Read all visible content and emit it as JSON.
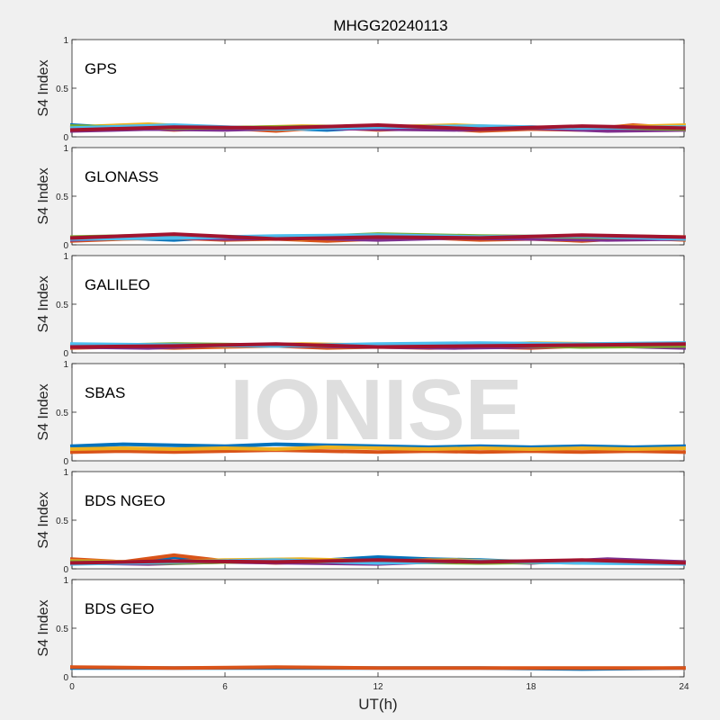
{
  "chart_data": {
    "type": "scatter",
    "title": "MHGG20240113",
    "xlabel": "UT(h)",
    "ylabel": "S4 Index",
    "xlim": [
      0,
      24
    ],
    "ylim": [
      0,
      1
    ],
    "xticks": [
      "0",
      "6",
      "12",
      "18",
      "24"
    ],
    "yticks": [
      "0",
      "0.5",
      "1"
    ],
    "watermark": "IONISE",
    "palette": [
      "#0072bd",
      "#d95319",
      "#edb120",
      "#7e2f8e",
      "#77ac30",
      "#4dbeee",
      "#a2142f"
    ],
    "panels": [
      {
        "label": "GPS",
        "series": [
          {
            "x": [
              0,
              2,
              4,
              6,
              8,
              10,
              12,
              14,
              16,
              18,
              20,
              22,
              24
            ],
            "y": [
              0.12,
              0.09,
              0.1,
              0.08,
              0.09,
              0.07,
              0.1,
              0.08,
              0.09,
              0.1,
              0.08,
              0.09,
              0.11
            ]
          },
          {
            "x": [
              0,
              2,
              4,
              6,
              8,
              10,
              12,
              14,
              16,
              18,
              20,
              22,
              24
            ],
            "y": [
              0.08,
              0.1,
              0.07,
              0.09,
              0.06,
              0.1,
              0.07,
              0.09,
              0.06,
              0.08,
              0.07,
              0.12,
              0.09
            ]
          },
          {
            "x": [
              0,
              3,
              6,
              9,
              12,
              15,
              18,
              21,
              24
            ],
            "y": [
              0.1,
              0.13,
              0.09,
              0.11,
              0.1,
              0.12,
              0.09,
              0.1,
              0.12
            ]
          },
          {
            "x": [
              0,
              3,
              6,
              9,
              12,
              15,
              18,
              21,
              24
            ],
            "y": [
              0.06,
              0.08,
              0.07,
              0.09,
              0.08,
              0.07,
              0.09,
              0.06,
              0.07
            ]
          },
          {
            "x": [
              0,
              4,
              8,
              12,
              16,
              20,
              24
            ],
            "y": [
              0.11,
              0.09,
              0.1,
              0.11,
              0.09,
              0.1,
              0.08
            ]
          },
          {
            "x": [
              0,
              4,
              8,
              12,
              16,
              20,
              24
            ],
            "y": [
              0.09,
              0.12,
              0.08,
              0.1,
              0.11,
              0.09,
              0.1
            ]
          },
          {
            "x": [
              0,
              4,
              8,
              12,
              16,
              20,
              24
            ],
            "y": [
              0.07,
              0.1,
              0.09,
              0.12,
              0.08,
              0.11,
              0.09
            ]
          }
        ]
      },
      {
        "label": "GLONASS",
        "series": [
          {
            "x": [
              0,
              2,
              4,
              6,
              8,
              10,
              12,
              14,
              16,
              18,
              20,
              22,
              24
            ],
            "y": [
              0.06,
              0.07,
              0.05,
              0.08,
              0.06,
              0.07,
              0.09,
              0.08,
              0.06,
              0.07,
              0.08,
              0.06,
              0.07
            ]
          },
          {
            "x": [
              0,
              2,
              4,
              6,
              8,
              10,
              12,
              14,
              16,
              18,
              20,
              22,
              24
            ],
            "y": [
              0.04,
              0.06,
              0.07,
              0.05,
              0.06,
              0.04,
              0.06,
              0.07,
              0.05,
              0.06,
              0.04,
              0.07,
              0.05
            ]
          },
          {
            "x": [
              0,
              3,
              6,
              9,
              12,
              15,
              18,
              21,
              24
            ],
            "y": [
              0.07,
              0.09,
              0.08,
              0.06,
              0.1,
              0.08,
              0.07,
              0.09,
              0.08
            ]
          },
          {
            "x": [
              0,
              3,
              6,
              9,
              12,
              15,
              18,
              21,
              24
            ],
            "y": [
              0.05,
              0.08,
              0.06,
              0.07,
              0.05,
              0.07,
              0.06,
              0.05,
              0.06
            ]
          },
          {
            "x": [
              0,
              4,
              8,
              12,
              16,
              20,
              24
            ],
            "y": [
              0.08,
              0.1,
              0.07,
              0.11,
              0.09,
              0.08,
              0.07
            ]
          },
          {
            "x": [
              0,
              4,
              8,
              12,
              16,
              20,
              24
            ],
            "y": [
              0.06,
              0.07,
              0.09,
              0.1,
              0.08,
              0.09,
              0.06
            ]
          },
          {
            "x": [
              0,
              4,
              8,
              12,
              16,
              20,
              24
            ],
            "y": [
              0.07,
              0.11,
              0.06,
              0.08,
              0.07,
              0.1,
              0.08
            ]
          }
        ]
      },
      {
        "label": "GALILEO",
        "series": [
          {
            "x": [
              0,
              2,
              4,
              6,
              8,
              10,
              12,
              14,
              16,
              18,
              20,
              22,
              24
            ],
            "y": [
              0.08,
              0.07,
              0.06,
              0.08,
              0.07,
              0.06,
              0.08,
              0.07,
              0.06,
              0.07,
              0.08,
              0.07,
              0.06
            ]
          },
          {
            "x": [
              0,
              2,
              4,
              6,
              8,
              10,
              12,
              14,
              16,
              18,
              20,
              22,
              24
            ],
            "y": [
              0.05,
              0.06,
              0.05,
              0.06,
              0.07,
              0.05,
              0.06,
              0.05,
              0.06,
              0.05,
              0.07,
              0.09,
              0.08
            ]
          },
          {
            "x": [
              0,
              3,
              6,
              9,
              12,
              15,
              18,
              21,
              24
            ],
            "y": [
              0.07,
              0.08,
              0.07,
              0.09,
              0.08,
              0.07,
              0.1,
              0.09,
              0.08
            ]
          },
          {
            "x": [
              0,
              3,
              6,
              9,
              12,
              15,
              18,
              21,
              24
            ],
            "y": [
              0.06,
              0.05,
              0.08,
              0.07,
              0.06,
              0.05,
              0.06,
              0.07,
              0.05
            ]
          },
          {
            "x": [
              0,
              4,
              8,
              12,
              16,
              20,
              24
            ],
            "y": [
              0.07,
              0.09,
              0.08,
              0.07,
              0.08,
              0.06,
              0.07
            ]
          },
          {
            "x": [
              0,
              4,
              8,
              12,
              16,
              20,
              24
            ],
            "y": [
              0.09,
              0.08,
              0.07,
              0.09,
              0.1,
              0.09,
              0.1
            ]
          },
          {
            "x": [
              0,
              4,
              8,
              12,
              16,
              20,
              24
            ],
            "y": [
              0.06,
              0.07,
              0.09,
              0.06,
              0.07,
              0.08,
              0.09
            ]
          }
        ]
      },
      {
        "label": "SBAS",
        "series": [
          {
            "x": [
              0,
              2,
              4,
              6,
              8,
              10,
              12,
              14,
              16,
              18,
              20,
              22,
              24
            ],
            "y": [
              0.15,
              0.17,
              0.16,
              0.15,
              0.17,
              0.16,
              0.15,
              0.14,
              0.15,
              0.14,
              0.15,
              0.14,
              0.15
            ]
          },
          {
            "x": [
              0,
              2,
              4,
              6,
              8,
              10,
              12,
              14,
              16,
              18,
              20,
              22,
              24
            ],
            "y": [
              0.09,
              0.1,
              0.09,
              0.1,
              0.11,
              0.1,
              0.09,
              0.1,
              0.09,
              0.1,
              0.09,
              0.1,
              0.09
            ]
          },
          {
            "x": [
              0,
              2,
              4,
              6,
              8,
              10,
              12,
              14,
              16,
              18,
              20,
              22,
              24
            ],
            "y": [
              0.12,
              0.13,
              0.12,
              0.13,
              0.12,
              0.14,
              0.13,
              0.12,
              0.13,
              0.12,
              0.13,
              0.12,
              0.13
            ]
          }
        ]
      },
      {
        "label": "BDS NGEO",
        "series": [
          {
            "x": [
              0,
              2,
              4,
              6,
              8,
              10,
              12,
              14,
              16,
              18,
              20,
              22,
              24
            ],
            "y": [
              0.07,
              0.06,
              0.12,
              0.08,
              0.07,
              0.09,
              0.12,
              0.1,
              0.09,
              0.07,
              0.08,
              0.06,
              0.07
            ]
          },
          {
            "x": [
              0,
              2,
              4,
              6,
              8,
              10,
              12,
              14,
              16,
              18,
              20,
              22,
              24
            ],
            "y": [
              0.1,
              0.07,
              0.14,
              0.08,
              0.06,
              0.08,
              0.07,
              0.09,
              0.06,
              0.07,
              0.06,
              0.08,
              0.06
            ]
          },
          {
            "x": [
              0,
              3,
              6,
              9,
              12,
              15,
              18,
              21,
              24
            ],
            "y": [
              0.08,
              0.07,
              0.09,
              0.1,
              0.08,
              0.09,
              0.07,
              0.08,
              0.07
            ]
          },
          {
            "x": [
              0,
              3,
              6,
              9,
              12,
              15,
              18,
              21,
              24
            ],
            "y": [
              0.06,
              0.05,
              0.07,
              0.06,
              0.05,
              0.08,
              0.06,
              0.1,
              0.07
            ]
          },
          {
            "x": [
              0,
              4,
              8,
              12,
              16,
              20,
              24
            ],
            "y": [
              0.07,
              0.06,
              0.08,
              0.07,
              0.06,
              0.07,
              0.06
            ]
          },
          {
            "x": [
              0,
              4,
              8,
              12,
              16,
              20,
              24
            ],
            "y": [
              0.05,
              0.07,
              0.09,
              0.06,
              0.08,
              0.06,
              0.05
            ]
          },
          {
            "x": [
              0,
              4,
              8,
              12,
              16,
              20,
              24
            ],
            "y": [
              0.06,
              0.08,
              0.07,
              0.09,
              0.07,
              0.09,
              0.06
            ]
          }
        ]
      },
      {
        "label": "BDS GEO",
        "series": [
          {
            "x": [
              0,
              4,
              8,
              12,
              16,
              20,
              24
            ],
            "y": [
              0.09,
              0.09,
              0.09,
              0.09,
              0.09,
              0.08,
              0.09
            ]
          },
          {
            "x": [
              0,
              4,
              8,
              12,
              16,
              20,
              24
            ],
            "y": [
              0.1,
              0.09,
              0.1,
              0.09,
              0.09,
              0.09,
              0.09
            ]
          }
        ]
      }
    ]
  }
}
